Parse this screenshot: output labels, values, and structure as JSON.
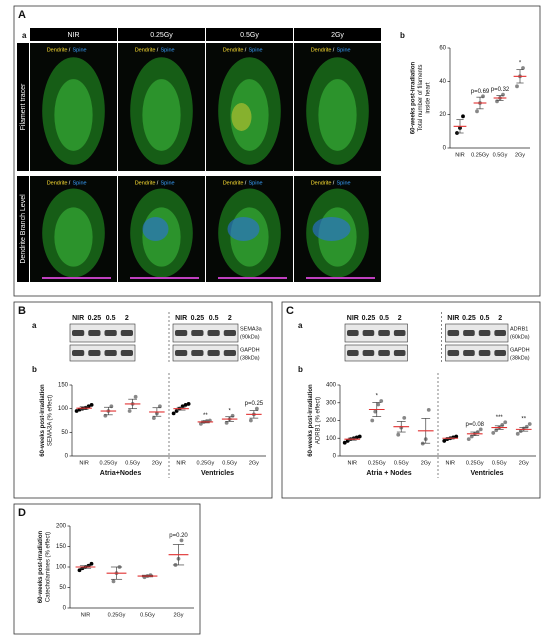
{
  "panel_A": {
    "label": "A",
    "sub_a": "a",
    "sub_b": "b",
    "columns": [
      "NIR",
      "0.25Gy",
      "0.5Gy",
      "2Gy"
    ],
    "legend_dendrite": "Dendrite",
    "legend_sep": " / ",
    "legend_spine": "Spine",
    "rows": [
      "Filament tracer",
      "Dendrite Branch Level"
    ],
    "chart": {
      "type": "strip",
      "ylabel": [
        "60-weeks post-irradiation",
        "Total number of filaments",
        "inside heart"
      ],
      "categories": [
        "NIR",
        "0.25Gy",
        "0.5Gy",
        "2Gy"
      ],
      "ylim": [
        0,
        60
      ],
      "yticks": [
        0,
        20,
        40,
        60
      ],
      "mean_color": "#e03030",
      "groups": [
        {
          "points": [
            9,
            12,
            19
          ],
          "mean": 13,
          "error": 4,
          "color": "#000000"
        },
        {
          "points": [
            22,
            27,
            31
          ],
          "mean": 27,
          "error": 3.5,
          "color": "#888888"
        },
        {
          "points": [
            28,
            30,
            32
          ],
          "mean": 30,
          "error": 1.5,
          "color": "#888888"
        },
        {
          "points": [
            37,
            43,
            48
          ],
          "mean": 43,
          "error": 4,
          "color": "#888888"
        }
      ],
      "annotations": [
        null,
        "p=0.69",
        "p=0.32",
        "*"
      ]
    }
  },
  "panel_B": {
    "label": "B",
    "sub_a": "a",
    "sub_b": "b",
    "lanes": [
      "NIR",
      "0.25",
      "0.5",
      "2"
    ],
    "blot_labels": [
      [
        "SEMA3a",
        "(90kDa)"
      ],
      [
        "GAPDH",
        "(38kDa)"
      ]
    ],
    "chart": {
      "type": "strip",
      "ylabel": [
        "60-weeks post-irradiation",
        "SEMA3A (% effect)"
      ],
      "categories": [
        "NIR",
        "0.25Gy",
        "0.5Gy",
        "2Gy",
        "NIR",
        "0.25Gy",
        "0.5Gy",
        "2Gy"
      ],
      "region_labels": [
        "Atria+Nodes",
        "Ventricles"
      ],
      "ylim": [
        0,
        150
      ],
      "yticks": [
        0,
        50,
        100,
        150
      ],
      "mean_color": "#e03030",
      "groups": [
        {
          "points": [
            95,
            98,
            100,
            102,
            105,
            108
          ],
          "mean": 101,
          "error": 3,
          "color": "#000000"
        },
        {
          "points": [
            85,
            95,
            105
          ],
          "mean": 95,
          "error": 8,
          "color": "#888888"
        },
        {
          "points": [
            95,
            110,
            125
          ],
          "mean": 110,
          "error": 10,
          "color": "#888888"
        },
        {
          "points": [
            80,
            90,
            105
          ],
          "mean": 93,
          "error": 9,
          "color": "#888888"
        },
        {
          "points": [
            90,
            95,
            100,
            105,
            108,
            110
          ],
          "mean": 100,
          "error": 3,
          "color": "#000000"
        },
        {
          "points": [
            68,
            72,
            74,
            75
          ],
          "mean": 72,
          "error": 2,
          "color": "#888888"
        },
        {
          "points": [
            70,
            78,
            85
          ],
          "mean": 78,
          "error": 5,
          "color": "#888888"
        },
        {
          "points": [
            75,
            88,
            100
          ],
          "mean": 88,
          "error": 8,
          "color": "#888888"
        }
      ],
      "annotations": [
        null,
        null,
        null,
        null,
        null,
        "**",
        "*",
        "p=0.25"
      ]
    }
  },
  "panel_C": {
    "label": "C",
    "sub_a": "a",
    "sub_b": "b",
    "lanes": [
      "NIR",
      "0.25",
      "0.5",
      "2"
    ],
    "blot_labels": [
      [
        "ADRB1",
        "(60kDa)"
      ],
      [
        "GAPDH",
        "(38kDa)"
      ]
    ],
    "chart": {
      "type": "strip",
      "ylabel": [
        "60-weeks post-irradiation",
        "ADRB1 (% effect)"
      ],
      "categories": [
        "NIR",
        "0.25Gy",
        "0.5Gy",
        "2Gy",
        "NIR",
        "0.25Gy",
        "0.5Gy",
        "2Gy"
      ],
      "region_labels": [
        "Atria + Nodes",
        "Ventricles"
      ],
      "ylim": [
        0,
        400
      ],
      "yticks": [
        0,
        100,
        200,
        300,
        400
      ],
      "mean_color": "#e03030",
      "groups": [
        {
          "points": [
            75,
            85,
            95,
            100,
            105,
            110
          ],
          "mean": 95,
          "error": 6,
          "color": "#000000"
        },
        {
          "points": [
            200,
            250,
            290,
            310
          ],
          "mean": 262,
          "error": 40,
          "color": "#888888"
        },
        {
          "points": [
            120,
            160,
            215
          ],
          "mean": 165,
          "error": 30,
          "color": "#888888"
        },
        {
          "points": [
            70,
            95,
            260
          ],
          "mean": 142,
          "error": 70,
          "color": "#888888"
        },
        {
          "points": [
            85,
            95,
            100,
            105,
            110
          ],
          "mean": 100,
          "error": 4,
          "color": "#000000"
        },
        {
          "points": [
            95,
            110,
            125,
            135,
            150
          ],
          "mean": 125,
          "error": 10,
          "color": "#888888"
        },
        {
          "points": [
            130,
            145,
            160,
            175,
            190
          ],
          "mean": 160,
          "error": 10,
          "color": "#888888"
        },
        {
          "points": [
            125,
            140,
            155,
            165,
            180
          ],
          "mean": 150,
          "error": 10,
          "color": "#888888"
        }
      ],
      "annotations": [
        null,
        "*",
        null,
        null,
        null,
        "p=0.08",
        "***",
        "**"
      ]
    }
  },
  "panel_D": {
    "label": "D",
    "chart": {
      "type": "strip",
      "ylabel": [
        "60-weeks post-irradiation",
        "Catecholamines (% effect)"
      ],
      "categories": [
        "NIR",
        "0.25Gy",
        "0.5Gy",
        "2Gy"
      ],
      "ylim": [
        0,
        200
      ],
      "yticks": [
        0,
        50,
        100,
        150,
        200
      ],
      "mean_color": "#e03030",
      "groups": [
        {
          "points": [
            92,
            97,
            100,
            103,
            108
          ],
          "mean": 100,
          "error": 3,
          "color": "#000000"
        },
        {
          "points": [
            65,
            85,
            100
          ],
          "mean": 85,
          "error": 15,
          "color": "#888888"
        },
        {
          "points": [
            75,
            78,
            80
          ],
          "mean": 78,
          "error": 2,
          "color": "#888888"
        },
        {
          "points": [
            105,
            120,
            165
          ],
          "mean": 130,
          "error": 25,
          "color": "#888888"
        }
      ],
      "annotations": [
        null,
        null,
        null,
        "p=0.20"
      ]
    }
  }
}
